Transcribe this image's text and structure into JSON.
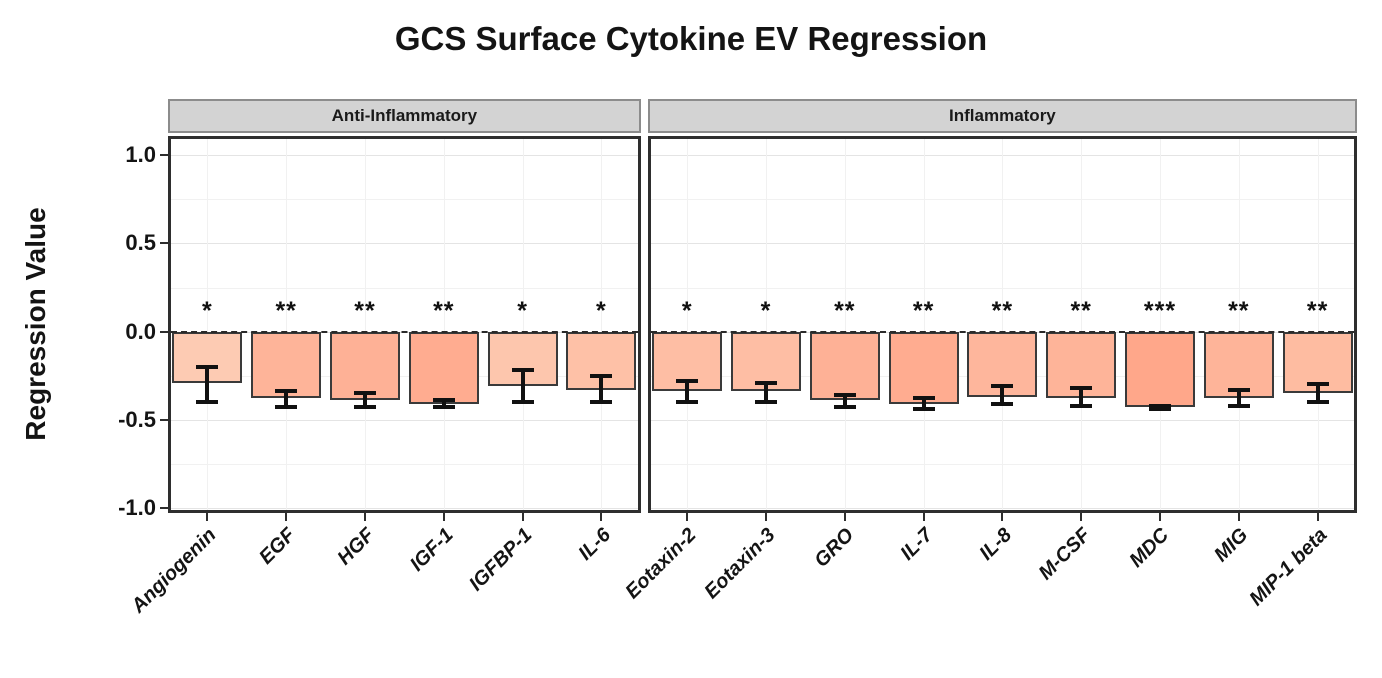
{
  "title": "GCS Surface Cytokine EV Regression",
  "colors": {
    "background": "#ffffff",
    "panel_border": "#2e2e2e",
    "strip_fill": "#d3d3d3",
    "strip_border": "#8c8c8c",
    "bar_border": "#3a3a3a",
    "error_bar": "#111111",
    "zero_line": "#2a2a2a",
    "grid_major": "#e4e4e4",
    "grid_minor": "#f1f1f1",
    "fill_lightest": "#fdcbb3",
    "fill_darkest": "#ffa78a",
    "text": "#141414"
  },
  "chart_data": {
    "type": "bar",
    "title": "GCS Surface Cytokine EV Regression",
    "xlabel": "",
    "ylabel": "Regression Value",
    "ylim": [
      -1.03,
      1.11
    ],
    "yticks": [
      "1.0",
      "0.5",
      "0.0",
      "-0.5",
      "-1.0"
    ],
    "grid": "horizontal every 0.25 (light gray), vertical at each category, dashed black line at 0",
    "legend_position": "none",
    "error_bars": true,
    "significance_annotations": true,
    "facets": [
      {
        "label": "Anti-Inflammatory",
        "bars": [
          {
            "label": "Angiogenin",
            "value": -0.29,
            "err_low": -0.4,
            "err_high": -0.2,
            "sig": "*",
            "fill": "#fdcbb3"
          },
          {
            "label": "EGF",
            "value": -0.38,
            "err_low": -0.43,
            "err_high": -0.34,
            "sig": "**",
            "fill": "#feb499"
          },
          {
            "label": "HGF",
            "value": -0.39,
            "err_low": -0.43,
            "err_high": -0.35,
            "sig": "**",
            "fill": "#feb196"
          },
          {
            "label": "IGF-1",
            "value": -0.41,
            "err_low": -0.43,
            "err_high": -0.39,
            "sig": "**",
            "fill": "#ffac90"
          },
          {
            "label": "IGFBP-1",
            "value": -0.31,
            "err_low": -0.4,
            "err_high": -0.22,
            "sig": "*",
            "fill": "#fdc6ad"
          },
          {
            "label": "IL-6",
            "value": -0.33,
            "err_low": -0.4,
            "err_high": -0.25,
            "sig": "*",
            "fill": "#fec1a7"
          }
        ]
      },
      {
        "label": "Inflammatory",
        "bars": [
          {
            "label": "Eotaxin-2",
            "value": -0.34,
            "err_low": -0.4,
            "err_high": -0.28,
            "sig": "*",
            "fill": "#febea4"
          },
          {
            "label": "Eotaxin-3",
            "value": -0.34,
            "err_low": -0.4,
            "err_high": -0.29,
            "sig": "*",
            "fill": "#febea4"
          },
          {
            "label": "GRO",
            "value": -0.39,
            "err_low": -0.43,
            "err_high": -0.36,
            "sig": "**",
            "fill": "#feb196"
          },
          {
            "label": "IL-7",
            "value": -0.41,
            "err_low": -0.44,
            "err_high": -0.38,
            "sig": "**",
            "fill": "#ffac90"
          },
          {
            "label": "IL-8",
            "value": -0.37,
            "err_low": -0.41,
            "err_high": -0.31,
            "sig": "**",
            "fill": "#feb69c"
          },
          {
            "label": "M-CSF",
            "value": -0.38,
            "err_low": -0.42,
            "err_high": -0.32,
            "sig": "**",
            "fill": "#feb499"
          },
          {
            "label": "MDC",
            "value": -0.43,
            "err_low": -0.44,
            "err_high": -0.42,
            "sig": "***",
            "fill": "#ffa78a"
          },
          {
            "label": "MIG",
            "value": -0.38,
            "err_low": -0.42,
            "err_high": -0.33,
            "sig": "**",
            "fill": "#feb499"
          },
          {
            "label": "MIP-1 beta",
            "value": -0.35,
            "err_low": -0.4,
            "err_high": -0.3,
            "sig": "**",
            "fill": "#febca1"
          }
        ]
      }
    ]
  }
}
